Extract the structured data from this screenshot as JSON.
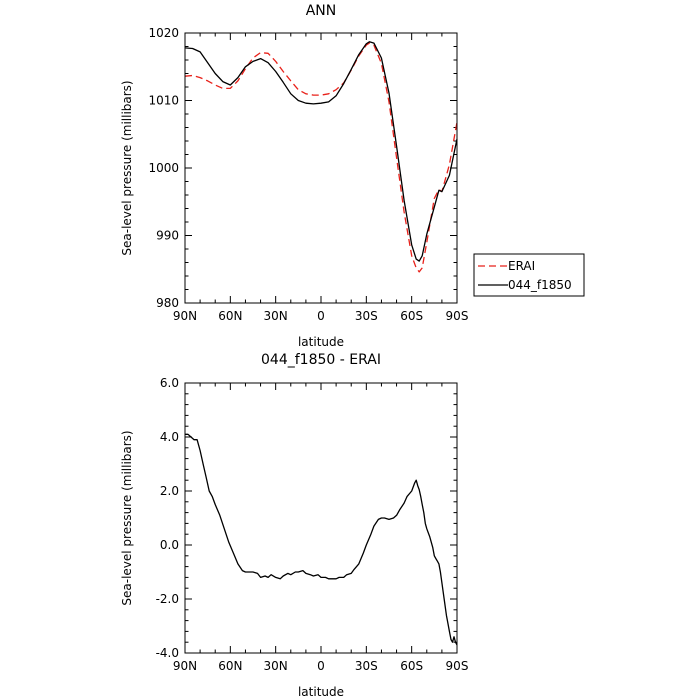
{
  "chart_data": [
    {
      "type": "line",
      "title": "ANN",
      "xlabel": "latitude",
      "ylabel": "Sea-level pressure (millibars)",
      "xlim": [
        90,
        -90
      ],
      "ylim": [
        980,
        1020
      ],
      "xticks": [
        90,
        60,
        30,
        0,
        -30,
        -60,
        -90
      ],
      "xtick_labels": [
        "90N",
        "60N",
        "30N",
        "0",
        "30S",
        "60S",
        "90S"
      ],
      "yticks": [
        980,
        990,
        1000,
        1010,
        1020
      ],
      "ytick_labels": [
        "980",
        "990",
        "1000",
        "1010",
        "1020"
      ],
      "legend": {
        "placement": "right"
      },
      "series": [
        {
          "name": "ERAI",
          "color": "#e8211a",
          "dash": "dashed",
          "x": [
            90,
            85,
            80,
            75,
            70,
            65,
            60,
            55,
            50,
            45,
            40,
            35,
            30,
            25,
            20,
            15,
            10,
            5,
            0,
            -5,
            -10,
            -15,
            -20,
            -25,
            -30,
            -32,
            -35,
            -40,
            -45,
            -50,
            -55,
            -60,
            -63,
            -65,
            -67,
            -70,
            -75,
            -78,
            -80,
            -85,
            -90
          ],
          "y": [
            1013.6,
            1013.7,
            1013.4,
            1012.9,
            1012.3,
            1011.8,
            1011.8,
            1012.9,
            1014.7,
            1016.3,
            1017.1,
            1017.0,
            1015.8,
            1014.3,
            1012.9,
            1011.6,
            1011.0,
            1010.8,
            1010.8,
            1011.0,
            1011.6,
            1012.6,
            1014.5,
            1016.6,
            1018.2,
            1018.5,
            1018.2,
            1015.5,
            1009.8,
            1001.5,
            993.5,
            987.0,
            985.2,
            984.6,
            985.2,
            989.0,
            995.5,
            996.8,
            996.5,
            1000.5,
            1006.8
          ]
        },
        {
          "name": "044_f1850",
          "color": "#000000",
          "dash": "solid",
          "x": [
            90,
            85,
            80,
            75,
            70,
            65,
            60,
            55,
            50,
            45,
            40,
            35,
            30,
            25,
            20,
            15,
            10,
            5,
            0,
            -5,
            -10,
            -15,
            -20,
            -25,
            -30,
            -32,
            -35,
            -40,
            -45,
            -50,
            -55,
            -60,
            -63,
            -65,
            -67,
            -70,
            -75,
            -78,
            -80,
            -85,
            -90
          ],
          "y": [
            1017.8,
            1017.7,
            1017.2,
            1015.6,
            1014.0,
            1012.8,
            1012.3,
            1013.4,
            1015.0,
            1015.8,
            1016.2,
            1015.6,
            1014.3,
            1012.7,
            1011.0,
            1010.0,
            1009.6,
            1009.5,
            1009.6,
            1009.8,
            1010.7,
            1012.5,
            1014.6,
            1016.8,
            1018.4,
            1018.7,
            1018.5,
            1016.3,
            1011.1,
            1003.2,
            995.2,
            988.6,
            986.5,
            986.2,
            987.0,
            990.2,
            994.2,
            996.7,
            996.5,
            998.9,
            1004.3
          ]
        }
      ]
    },
    {
      "type": "line",
      "title": "044_f1850 - ERAI",
      "xlabel": "latitude",
      "ylabel": "Sea-level pressure (millibars)",
      "xlim": [
        90,
        -90
      ],
      "ylim": [
        -4.0,
        6.0
      ],
      "xticks": [
        90,
        60,
        30,
        0,
        -30,
        -60,
        -90
      ],
      "xtick_labels": [
        "90N",
        "60N",
        "30N",
        "0",
        "30S",
        "60S",
        "90S"
      ],
      "yticks": [
        -4.0,
        -2.0,
        0.0,
        2.0,
        4.0,
        6.0
      ],
      "ytick_labels": [
        "-4.0",
        "-2.0",
        "0.0",
        "2.0",
        "4.0",
        "6.0"
      ],
      "series": [
        {
          "color": "#000000",
          "dash": "solid",
          "x": [
            90,
            88,
            86,
            84,
            82,
            80,
            78,
            76,
            74,
            72,
            70,
            67,
            64,
            61,
            58,
            55,
            52,
            50,
            48,
            45,
            42,
            40,
            37,
            35,
            33,
            30,
            27,
            25,
            22,
            20,
            17,
            15,
            12,
            10,
            7,
            5,
            2,
            0,
            -3,
            -5,
            -8,
            -10,
            -12,
            -15,
            -17,
            -20,
            -22,
            -25,
            -28,
            -30,
            -33,
            -35,
            -38,
            -40,
            -42,
            -45,
            -48,
            -50,
            -52,
            -55,
            -57,
            -60,
            -62,
            -63,
            -64,
            -65,
            -66,
            -67,
            -68,
            -69,
            -70,
            -71,
            -72,
            -73,
            -74,
            -75,
            -76,
            -77,
            -78,
            -79,
            -80,
            -81,
            -82,
            -83,
            -84,
            -85,
            -86,
            -87,
            -88,
            -89,
            -90
          ],
          "y": [
            4.1,
            4.1,
            4.0,
            3.9,
            3.9,
            3.5,
            3.0,
            2.5,
            2.0,
            1.8,
            1.5,
            1.1,
            0.6,
            0.1,
            -0.3,
            -0.7,
            -0.95,
            -1.0,
            -1.0,
            -1.0,
            -1.05,
            -1.2,
            -1.15,
            -1.2,
            -1.1,
            -1.2,
            -1.25,
            -1.15,
            -1.05,
            -1.1,
            -1.0,
            -1.0,
            -0.95,
            -1.05,
            -1.1,
            -1.15,
            -1.1,
            -1.2,
            -1.2,
            -1.25,
            -1.25,
            -1.25,
            -1.2,
            -1.2,
            -1.1,
            -1.05,
            -0.9,
            -0.7,
            -0.3,
            0.0,
            0.4,
            0.7,
            0.95,
            1.0,
            1.0,
            0.95,
            1.0,
            1.1,
            1.3,
            1.55,
            1.8,
            2.0,
            2.3,
            2.4,
            2.2,
            2.05,
            1.8,
            1.5,
            1.2,
            0.8,
            0.6,
            0.45,
            0.3,
            0.1,
            -0.1,
            -0.4,
            -0.5,
            -0.6,
            -0.7,
            -1.0,
            -1.4,
            -1.8,
            -2.2,
            -2.6,
            -2.9,
            -3.2,
            -3.5,
            -3.6,
            -3.4,
            -3.6,
            -3.7
          ]
        }
      ]
    }
  ]
}
